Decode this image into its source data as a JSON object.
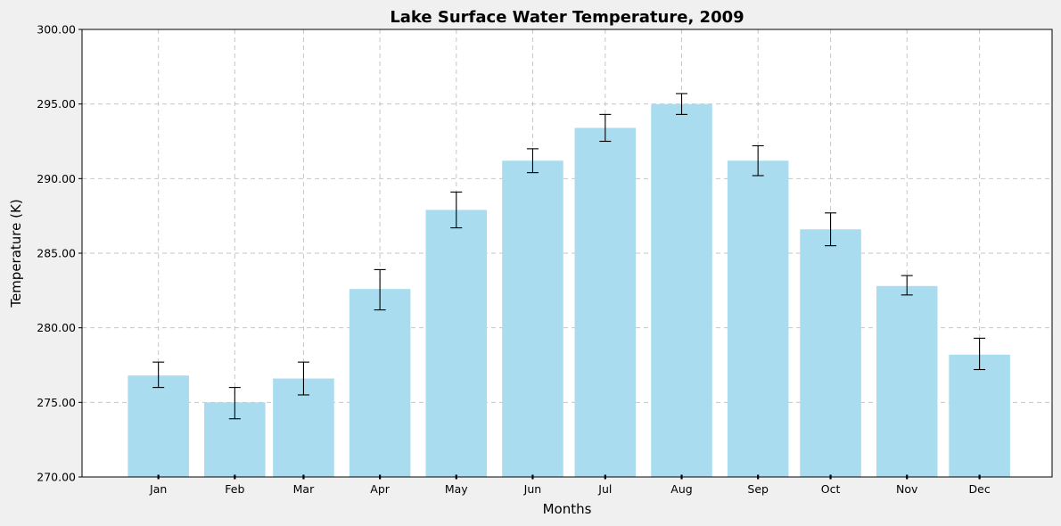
{
  "chart_data": {
    "type": "bar",
    "title": "Lake Surface Water Temperature, 2009",
    "xlabel": "Months",
    "ylabel": "Temperature (K)",
    "categories": [
      "Jan",
      "Feb",
      "Mar",
      "Apr",
      "May",
      "Jun",
      "Jul",
      "Aug",
      "Sep",
      "Oct",
      "Nov",
      "Dec"
    ],
    "x": [
      1.0,
      2.0,
      2.9,
      3.9,
      4.9,
      5.9,
      6.85,
      7.85,
      8.85,
      9.8,
      10.8,
      11.75
    ],
    "values": [
      276.8,
      275.0,
      276.6,
      282.6,
      287.9,
      291.2,
      293.4,
      295.0,
      291.2,
      286.6,
      282.8,
      278.2
    ],
    "error_low": [
      276.0,
      273.9,
      275.5,
      281.2,
      286.7,
      290.4,
      292.5,
      294.3,
      290.2,
      285.5,
      282.2,
      277.2
    ],
    "error_high": [
      277.7,
      276.0,
      277.7,
      283.9,
      289.1,
      292.0,
      294.3,
      295.7,
      292.2,
      287.7,
      283.5,
      279.3
    ],
    "ylim": [
      270,
      300
    ],
    "yticks": [
      "270.00",
      "275.00",
      "280.00",
      "285.00",
      "290.00",
      "295.00",
      "300.00"
    ],
    "grid": true,
    "bar_color": "#a8dcee",
    "error_color": "#000000"
  }
}
